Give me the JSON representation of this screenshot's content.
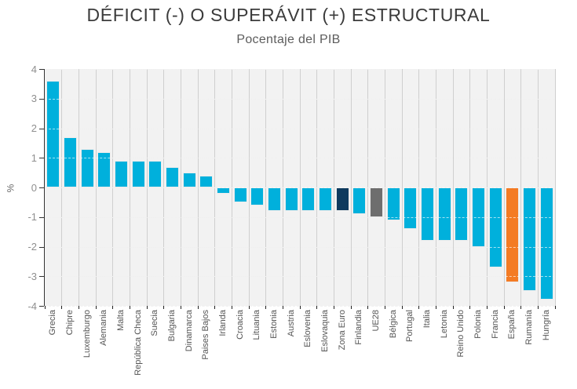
{
  "header": {
    "title": "DÉFICIT (-) O SUPERÁVIT (+) ESTRUCTURAL",
    "subtitle": "Pocentaje del PIB"
  },
  "chart_data": {
    "type": "bar",
    "title": "DÉFICIT (-) O SUPERÁVIT (+) ESTRUCTURAL",
    "subtitle": "Pocentaje del PIB",
    "xlabel": "",
    "ylabel": "%",
    "ylim": [
      -4,
      4
    ],
    "yticks": [
      4,
      3,
      2,
      1,
      0,
      -1,
      -2,
      -3,
      -4
    ],
    "grid": "horizontal dashed lines at every integer; vertical solid separators between categories",
    "legend": "none",
    "categories": [
      "Grecia",
      "Chipre",
      "Luxemburgo",
      "Alemania",
      "Malta",
      "República Checa",
      "Suecia",
      "Bulgaria",
      "Dinamarca",
      "Paises Bajos",
      "Irlanda",
      "Croacia",
      "Lituania",
      "Estonia",
      "Austria",
      "Eslovenia",
      "Eslovaquia",
      "Zona Euro",
      "Finlandia",
      "UE28",
      "Bélgica",
      "Portugal",
      "Italia",
      "Letonia",
      "Reino Unido",
      "Polonia",
      "Francia",
      "España",
      "Rumanía",
      "Hungría"
    ],
    "values": [
      3.6,
      1.7,
      1.3,
      1.2,
      0.9,
      0.9,
      0.9,
      0.7,
      0.5,
      0.4,
      -0.2,
      -0.5,
      -0.6,
      -0.8,
      -0.8,
      -0.8,
      -0.8,
      -0.8,
      -0.9,
      -1.0,
      -1.1,
      -1.4,
      -1.8,
      -1.8,
      -1.8,
      -2.0,
      -2.7,
      -3.2,
      -3.5,
      -3.8
    ],
    "colors": {
      "bar_default": "#00B0DC",
      "highlights": {
        "Zona Euro": "#0E3A5E",
        "UE28": "#6E6E6E",
        "España": "#F47B24"
      }
    }
  }
}
